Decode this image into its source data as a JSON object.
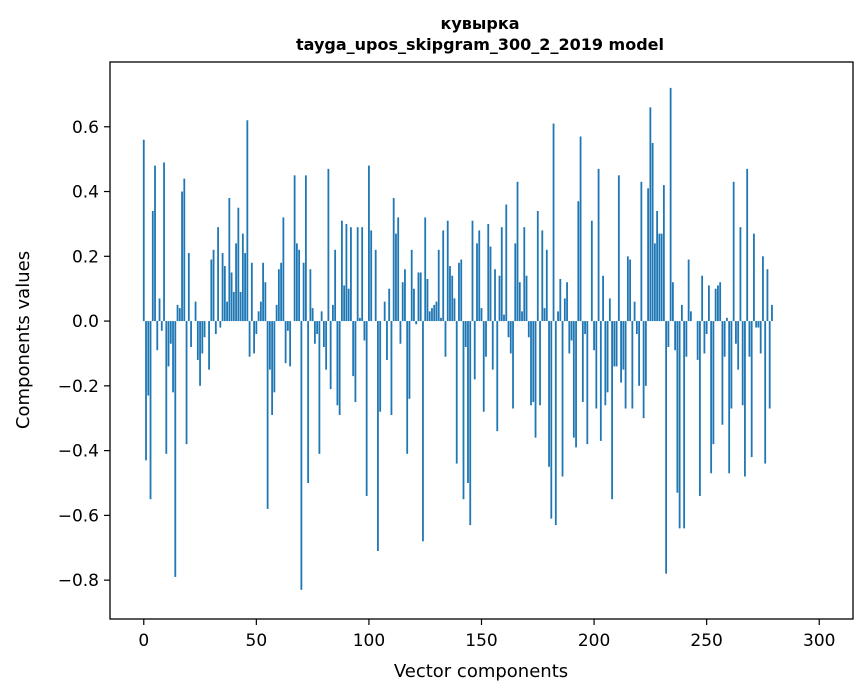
{
  "chart_data": {
    "type": "bar",
    "title_line1": "кувырка",
    "title_line2": "tayga_upos_skipgram_300_2_2019 model",
    "xlabel": "Vector components",
    "ylabel": "Components values",
    "xlim": [
      -15,
      315
    ],
    "ylim": [
      -0.92,
      0.8
    ],
    "x_ticks": [
      0,
      50,
      100,
      150,
      200,
      250,
      300
    ],
    "x_tick_labels": [
      "0",
      "50",
      "100",
      "150",
      "200",
      "250",
      "300"
    ],
    "y_ticks": [
      -0.8,
      -0.6,
      -0.4,
      -0.2,
      0.0,
      0.2,
      0.4,
      0.6
    ],
    "y_tick_labels": [
      "−0.8",
      "−0.6",
      "−0.4",
      "−0.2",
      "0.0",
      "0.2",
      "0.4",
      "0.6"
    ],
    "bar_color": "#1f77b4",
    "grid": false,
    "values": [
      0.56,
      -0.43,
      -0.23,
      -0.55,
      0.34,
      0.48,
      -0.09,
      0.07,
      -0.03,
      0.49,
      -0.41,
      -0.14,
      -0.07,
      -0.22,
      -0.79,
      0.05,
      0.04,
      0.4,
      0.44,
      -0.38,
      0.21,
      -0.08,
      0.0,
      0.06,
      -0.12,
      -0.2,
      -0.1,
      -0.05,
      0.0,
      -0.15,
      0.19,
      0.22,
      -0.04,
      0.29,
      -0.02,
      0.21,
      0.17,
      0.06,
      0.38,
      0.15,
      0.09,
      0.24,
      0.35,
      0.09,
      0.27,
      0.21,
      0.62,
      -0.11,
      0.18,
      -0.1,
      -0.04,
      0.03,
      0.06,
      0.18,
      0.12,
      -0.58,
      -0.15,
      -0.29,
      -0.22,
      0.05,
      0.16,
      0.18,
      0.32,
      -0.13,
      -0.03,
      -0.14,
      0.0,
      0.45,
      0.24,
      0.22,
      -0.83,
      0.18,
      0.45,
      -0.5,
      0.16,
      0.04,
      -0.07,
      -0.04,
      -0.41,
      0.03,
      -0.08,
      -0.15,
      0.47,
      -0.21,
      0.05,
      0.22,
      -0.26,
      -0.29,
      0.31,
      0.11,
      0.3,
      0.1,
      0.29,
      -0.17,
      -0.25,
      0.29,
      0.01,
      0.29,
      -0.06,
      -0.54,
      0.48,
      0.28,
      0.0,
      0.22,
      -0.71,
      -0.28,
      0.0,
      0.06,
      -0.12,
      0.1,
      -0.29,
      0.38,
      0.27,
      0.32,
      -0.07,
      0.12,
      0.16,
      -0.41,
      -0.24,
      0.22,
      0.1,
      -0.01,
      0.15,
      0.15,
      -0.68,
      0.32,
      0.13,
      0.03,
      0.04,
      0.05,
      0.06,
      0.22,
      0.01,
      0.28,
      -0.11,
      0.31,
      0.17,
      0.14,
      0.07,
      -0.44,
      0.18,
      0.19,
      -0.55,
      -0.08,
      -0.5,
      -0.63,
      0.31,
      -0.18,
      0.24,
      0.28,
      0.04,
      -0.28,
      -0.11,
      0.3,
      0.23,
      -0.15,
      0.16,
      -0.34,
      0.14,
      0.29,
      0.02,
      0.36,
      -0.05,
      -0.1,
      -0.27,
      0.24,
      0.43,
      0.12,
      0.03,
      0.29,
      0.14,
      -0.05,
      -0.26,
      -0.25,
      -0.36,
      0.34,
      -0.26,
      0.28,
      0.04,
      0.22,
      -0.45,
      -0.61,
      0.61,
      -0.63,
      0.03,
      0.13,
      -0.48,
      0.07,
      0.12,
      -0.1,
      -0.06,
      -0.36,
      -0.39,
      0.37,
      0.57,
      -0.25,
      -0.04,
      -0.38,
      0.0,
      0.31,
      -0.09,
      -0.27,
      0.47,
      -0.37,
      0.14,
      -0.26,
      -0.22,
      0.07,
      -0.55,
      -0.14,
      -0.14,
      0.45,
      -0.19,
      -0.15,
      -0.27,
      0.2,
      0.19,
      -0.27,
      0.06,
      -0.04,
      -0.2,
      0.43,
      -0.3,
      -0.2,
      0.41,
      0.66,
      0.55,
      0.24,
      0.34,
      0.27,
      0.27,
      0.42,
      -0.78,
      -0.08,
      0.72,
      0.12,
      -0.09,
      -0.53,
      -0.64,
      0.05,
      -0.64,
      -0.11,
      0.19,
      0.03,
      0.0,
      0.0,
      -0.12,
      -0.54,
      0.14,
      -0.1,
      -0.04,
      0.11,
      -0.47,
      -0.38,
      0.1,
      0.11,
      0.12,
      -0.32,
      -0.11,
      0.01,
      -0.47,
      -0.27,
      0.43,
      -0.07,
      -0.15,
      0.29,
      -0.26,
      -0.48,
      0.47,
      -0.11,
      -0.42,
      0.27,
      -0.02,
      -0.02,
      -0.1,
      0.2,
      -0.44,
      0.16,
      -0.27,
      0.05
    ]
  }
}
